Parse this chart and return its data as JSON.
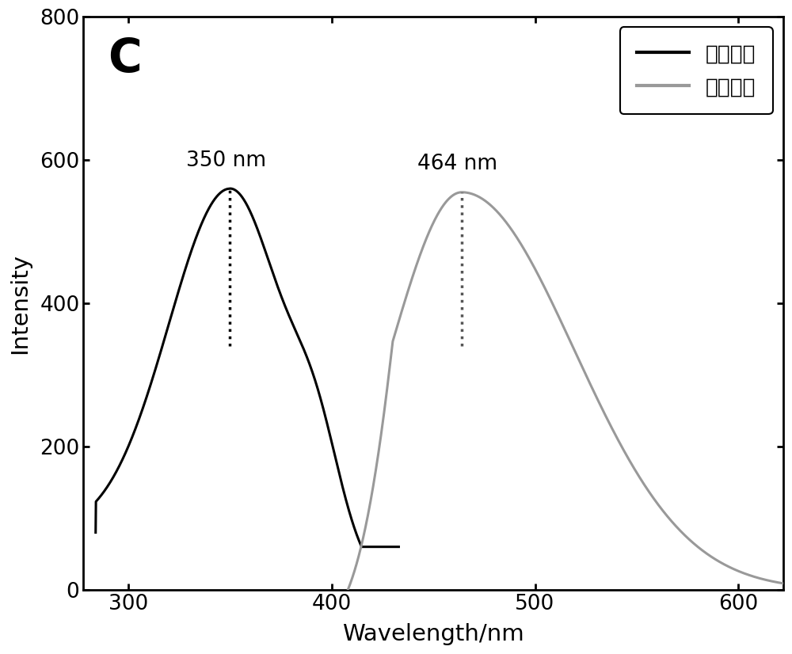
{
  "xlim": [
    278,
    622
  ],
  "ylim": [
    0,
    800
  ],
  "xticks": [
    300,
    400,
    500,
    600
  ],
  "yticks": [
    0,
    200,
    400,
    600,
    800
  ],
  "xlabel": "Wavelength/nm",
  "ylabel": "Intensity",
  "panel_label": "C",
  "peak1_x": 350,
  "peak1_y": 560,
  "peak2_x": 464,
  "peak2_y": 555,
  "annotation1": "350 nm",
  "annotation2": "464 nm",
  "line1_color": "#000000",
  "line2_color": "#999999",
  "legend_labels": [
    "激发光谱",
    "发射光谱"
  ],
  "linewidth": 2.2,
  "background_color": "#ffffff"
}
